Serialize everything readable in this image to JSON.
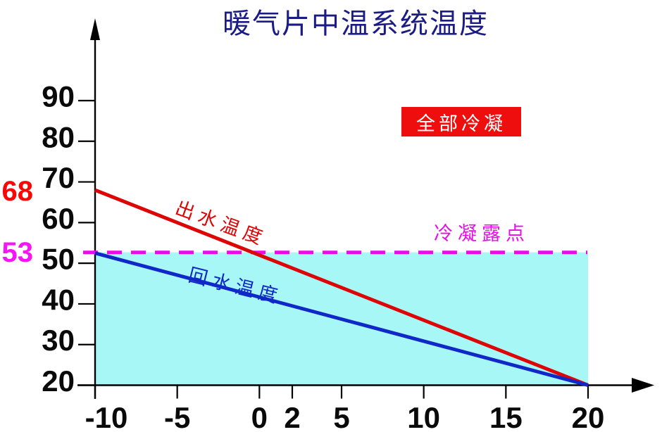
{
  "page": {
    "background": "#ffffff"
  },
  "title": {
    "text": "暖气片中温系统温度",
    "color": "#1b1b85"
  },
  "legend_box": {
    "text": "全部冷凝",
    "bg": "#ee0e0e",
    "fg": "#ffffff"
  },
  "chart_data": {
    "type": "line",
    "title": "暖气片中温系统温度",
    "xlabel": "",
    "ylabel": "",
    "x_range": [
      -10,
      20
    ],
    "y_range": [
      20,
      90
    ],
    "grid": false,
    "legend_position": "none",
    "x_ticks": [
      "-10",
      "-5",
      "0",
      "2",
      "5",
      "10",
      "15",
      "20"
    ],
    "x_tick_values": [
      -10,
      -5,
      0,
      2,
      5,
      10,
      15,
      20
    ],
    "y_ticks": [
      "90",
      "80",
      "70",
      "60",
      "50",
      "40",
      "30",
      "20"
    ],
    "y_tick_values": [
      90,
      80,
      70,
      60,
      50,
      40,
      30,
      20
    ],
    "series": [
      {
        "name": "出水温度",
        "color": "#dd0505",
        "points": [
          [
            -10,
            68
          ],
          [
            20,
            20
          ]
        ]
      },
      {
        "name": "回水温度",
        "color": "#1128c8",
        "points": [
          [
            -10,
            52.5
          ],
          [
            20,
            20
          ]
        ]
      }
    ],
    "dew_point_line": {
      "label": "冷凝露点",
      "value": 53,
      "color": "#e80ce8",
      "style": "dashed"
    },
    "condensation_region": {
      "label": "全部冷凝",
      "fill": "#a8f7f7",
      "x_from": -10,
      "x_to": 20,
      "y_from": 20,
      "y_to": 52.7
    },
    "axis_annotations": [
      {
        "text": "68",
        "color": "#fb0505",
        "y": 68
      },
      {
        "text": "53",
        "color": "#f714f7",
        "y": 53
      }
    ]
  }
}
